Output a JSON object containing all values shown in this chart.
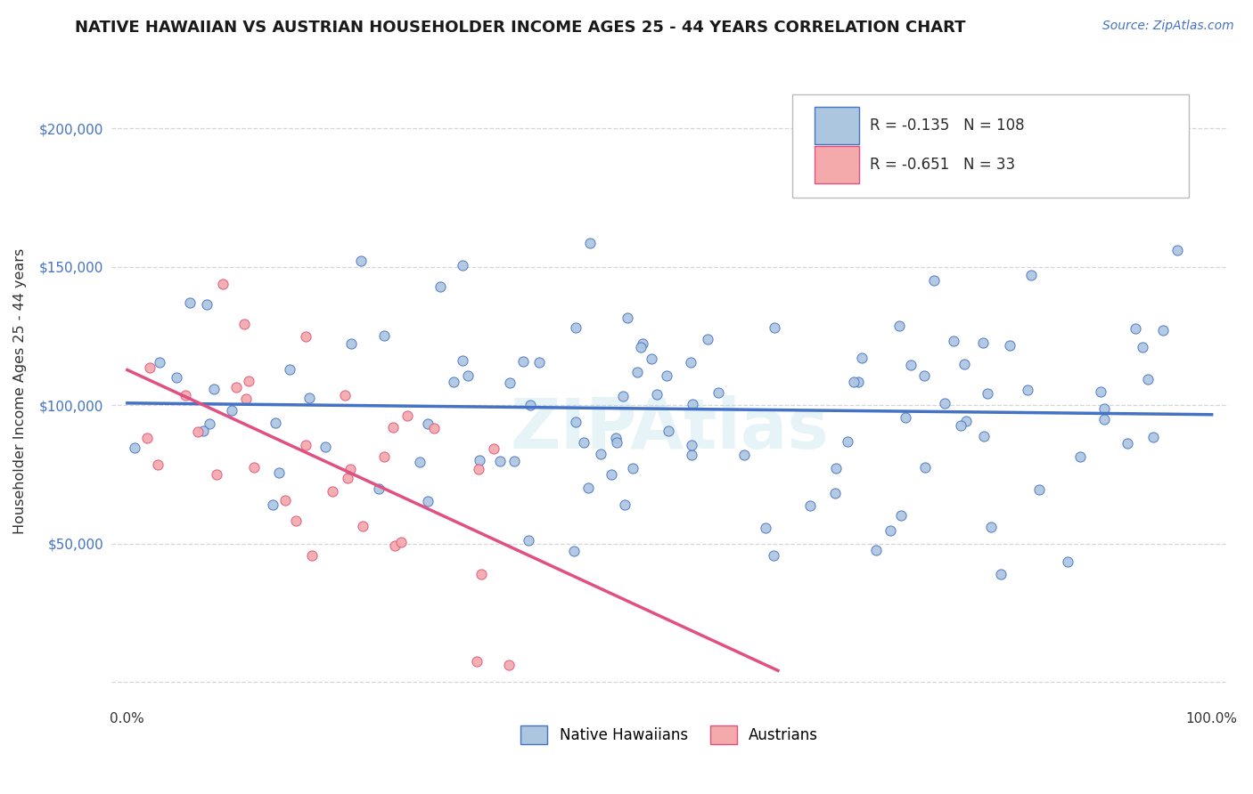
{
  "title": "NATIVE HAWAIIAN VS AUSTRIAN HOUSEHOLDER INCOME AGES 25 - 44 YEARS CORRELATION CHART",
  "source_text": "Source: ZipAtlas.com",
  "ylabel": "Householder Income Ages 25 - 44 years",
  "native_hawaiian_color": "#adc6e0",
  "native_hawaiian_edge": "#4472c4",
  "austrian_color": "#f4aaaa",
  "austrian_edge": "#e05080",
  "native_hawaiian_line_color": "#4472c4",
  "austrian_line_color": "#e05080",
  "background_color": "#ffffff",
  "grid_color": "#cccccc",
  "yaxis_color": "#4472c4",
  "R_hawaiian": -0.135,
  "N_hawaiian": 108,
  "R_austrian": -0.651,
  "N_austrian": 33,
  "watermark_color": "#add8e6",
  "legend_label_1": "Native Hawaiians",
  "legend_label_2": "Austrians"
}
